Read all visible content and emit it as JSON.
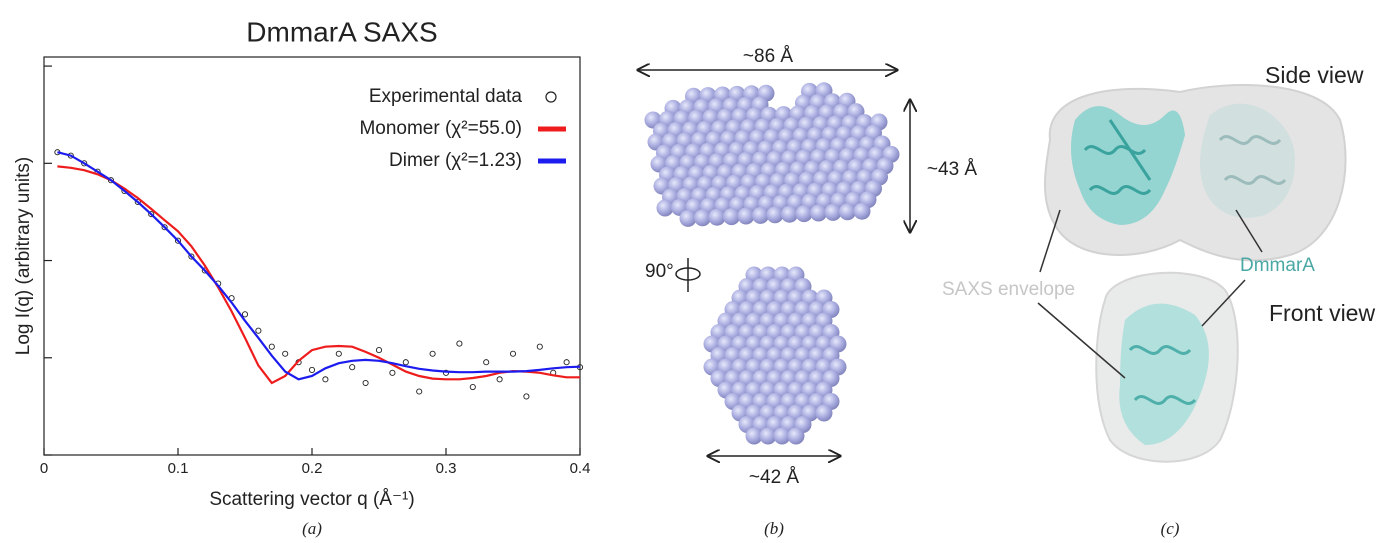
{
  "chart_data": {
    "type": "scatter-line",
    "title": "DmmarA SAXS",
    "x_label": "Scattering vector q (Å⁻¹)",
    "y_label": "Log I(q) (arbitrary units)",
    "yscale": "log",
    "x": [
      0.01,
      0.02,
      0.03,
      0.04,
      0.05,
      0.06,
      0.07,
      0.08,
      0.09,
      0.1,
      0.11,
      0.12,
      0.13,
      0.14,
      0.15,
      0.16,
      0.17,
      0.18,
      0.19,
      0.2,
      0.21,
      0.22,
      0.23,
      0.24,
      0.25,
      0.26,
      0.27,
      0.28,
      0.29,
      0.3,
      0.31,
      0.32,
      0.33,
      0.34,
      0.35,
      0.36,
      0.37,
      0.38,
      0.39,
      0.4
    ],
    "series": [
      {
        "name": "Experimental data",
        "color": "#222222",
        "marker": "open-circle",
        "values": [
          0.13,
          0.12,
          0.1,
          0.082,
          0.067,
          0.052,
          0.04,
          0.03,
          0.022,
          0.016,
          0.011,
          0.0079,
          0.0058,
          0.0041,
          0.0028,
          0.0019,
          0.0013,
          0.0011,
          0.0009,
          0.00075,
          0.0006,
          0.0011,
          0.0008,
          0.00055,
          0.0012,
          0.0007,
          0.0009,
          0.00045,
          0.0011,
          0.0007,
          0.0014,
          0.0005,
          0.0009,
          0.0006,
          0.0011,
          0.0004,
          0.0013,
          0.0007,
          0.0009,
          0.0008
        ]
      },
      {
        "name": "Monomer (χ²=55.0)",
        "color": "#ee1c1c",
        "marker": "line",
        "values": [
          0.093,
          0.09,
          0.085,
          0.077,
          0.067,
          0.055,
          0.044,
          0.034,
          0.026,
          0.02,
          0.014,
          0.0089,
          0.0053,
          0.003,
          0.0016,
          0.00083,
          0.00055,
          0.00065,
          0.00093,
          0.0012,
          0.0013,
          0.00132,
          0.0013,
          0.00115,
          0.001,
          0.00085,
          0.00072,
          0.00065,
          0.00061,
          0.0006,
          0.0006,
          0.00062,
          0.00065,
          0.0007,
          0.00073,
          0.00072,
          0.0007,
          0.00066,
          0.00063,
          0.00063
        ]
      },
      {
        "name": "Dimer (χ²=1.23)",
        "color": "#1c1cee",
        "marker": "line",
        "values": [
          0.13,
          0.12,
          0.1,
          0.082,
          0.067,
          0.052,
          0.04,
          0.03,
          0.022,
          0.016,
          0.011,
          0.0079,
          0.0055,
          0.0037,
          0.0024,
          0.0016,
          0.00105,
          0.00072,
          0.0006,
          0.00065,
          0.00078,
          0.00088,
          0.00093,
          0.00095,
          0.00093,
          0.00088,
          0.00082,
          0.00077,
          0.00074,
          0.00072,
          0.00071,
          0.00071,
          0.00072,
          0.00072,
          0.00072,
          0.00073,
          0.00075,
          0.00078,
          0.0008,
          0.00081
        ]
      }
    ],
    "xlim": [
      0,
      0.4
    ],
    "xticks": [
      0,
      0.1,
      0.2,
      0.3,
      0.4
    ],
    "ylim": [
      0.0001,
      1.24
    ],
    "yticks": [
      0.0001,
      0.001,
      0.01,
      0.1,
      1
    ],
    "legend": "upper-right"
  },
  "panel_b": {
    "width_top": "~86 Å",
    "height": "~43 Å",
    "rotation": "90°",
    "width_bottom": "~42 Å"
  },
  "panel_c": {
    "side_view": "Side view",
    "front_view": "Front view",
    "envelope": "SAXS envelope",
    "protein": "DmmarA"
  },
  "panel_labels": [
    "(a)",
    "(b)",
    "(c)"
  ]
}
